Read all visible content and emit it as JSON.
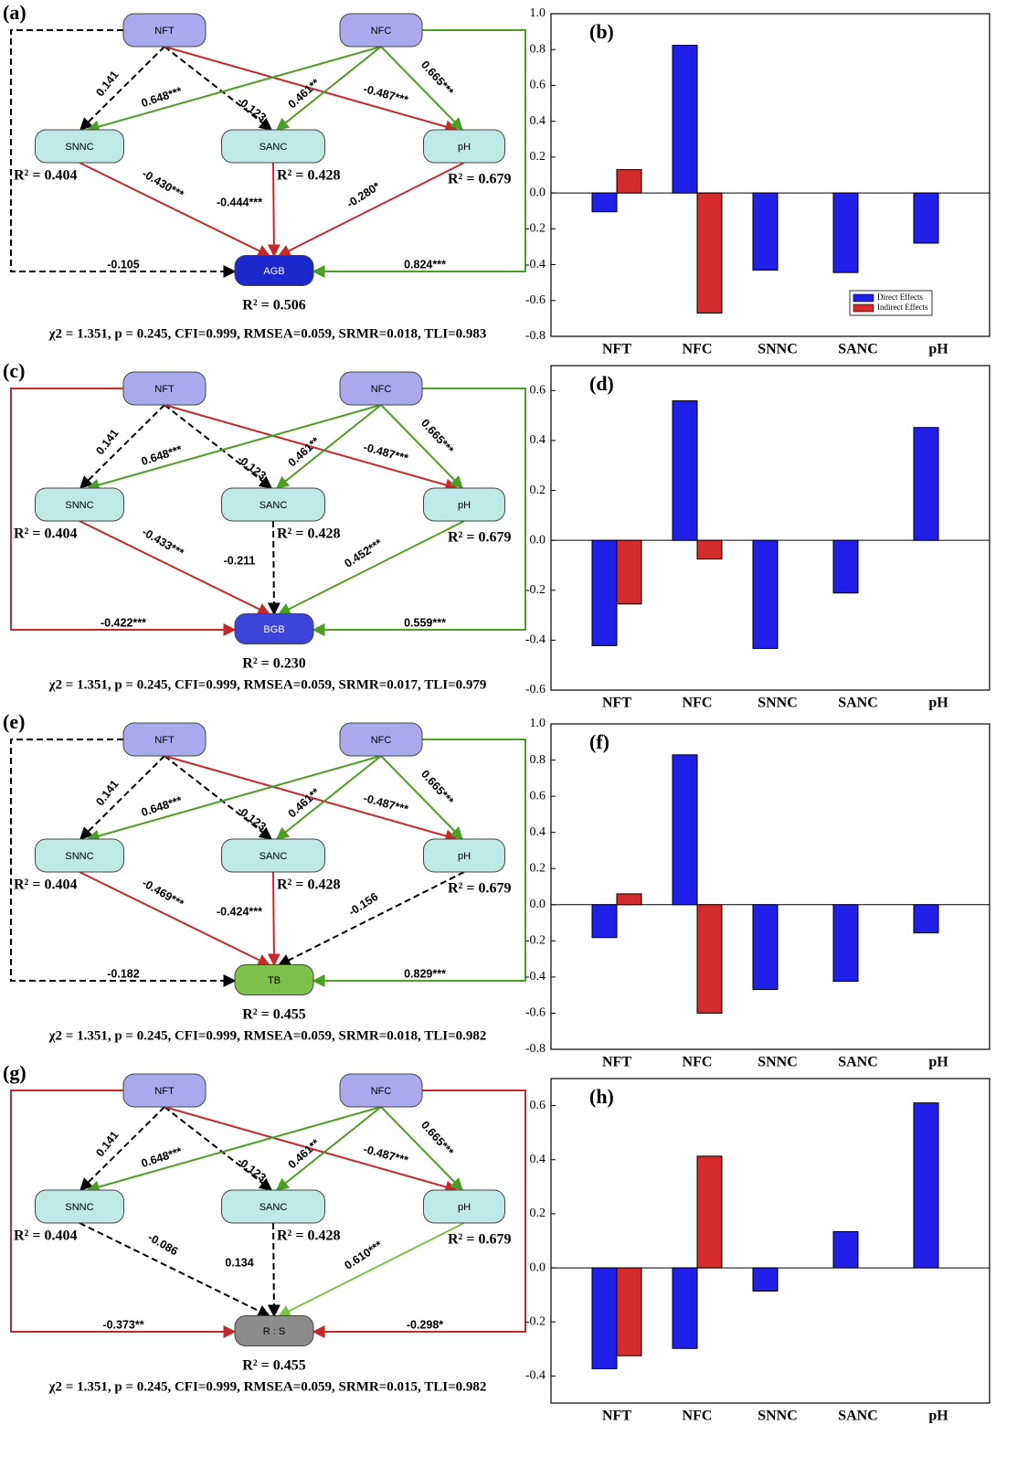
{
  "diagrams": [
    {
      "panel": "(a)",
      "fit": "χ2 = 1.351, p = 0.245, CFI=0.999, RMSEA=0.059, SRMR=0.018, TLI=0.983",
      "nodes": [
        {
          "label": "NFT",
          "fill": "#a9aaee"
        },
        {
          "label": "NFC",
          "fill": "#a9aaee"
        },
        {
          "label": "SNNC",
          "fill": "#bfe9e7",
          "r2": "R² = 0.404"
        },
        {
          "label": "SANC",
          "fill": "#bfe9e7",
          "r2": "R² = 0.428"
        },
        {
          "label": "pH",
          "fill": "#bfe9e7",
          "r2": "R² = 0.679"
        },
        {
          "label": "AGB",
          "fill": "#1a28cc",
          "r2": "R² = 0.506"
        }
      ],
      "edges": [
        {
          "from": 0,
          "to": 2,
          "label": "0.141",
          "color": "#000000",
          "dashed": true
        },
        {
          "from": 0,
          "to": 3,
          "label": "-0.123",
          "color": "#000000",
          "dashed": true
        },
        {
          "from": 0,
          "to": 4,
          "label": "-0.487***",
          "color": "#c42a2a",
          "dashed": false
        },
        {
          "from": 1,
          "to": 2,
          "label": "0.648***",
          "color": "#4c9e24",
          "dashed": false
        },
        {
          "from": 1,
          "to": 3,
          "label": "0.461**",
          "color": "#4c9e24",
          "dashed": false
        },
        {
          "from": 1,
          "to": 4,
          "label": "0.665***",
          "color": "#4c9e24",
          "dashed": false
        },
        {
          "from": 2,
          "to": 5,
          "label": "-0.430***",
          "color": "#c42a2a",
          "dashed": false
        },
        {
          "from": 3,
          "to": 5,
          "label": "-0.444***",
          "color": "#c42a2a",
          "dashed": false
        },
        {
          "from": 4,
          "to": 5,
          "label": "-0.280*",
          "color": "#c42a2a",
          "dashed": false
        },
        {
          "from": 0,
          "to": 5,
          "label": "-0.105",
          "color": "#000000",
          "dashed": true
        },
        {
          "from": 1,
          "to": 5,
          "label": "0.824***",
          "color": "#4c9e24",
          "dashed": false
        }
      ]
    },
    {
      "panel": "(c)",
      "fit": "χ2 = 1.351, p = 0.245, CFI=0.999, RMSEA=0.059, SRMR=0.017, TLI=0.979",
      "nodes": [
        {
          "label": "NFT",
          "fill": "#a9aaee"
        },
        {
          "label": "NFC",
          "fill": "#a9aaee"
        },
        {
          "label": "SNNC",
          "fill": "#bfe9e7",
          "r2": "R² = 0.404"
        },
        {
          "label": "SANC",
          "fill": "#bfe9e7",
          "r2": "R² = 0.428"
        },
        {
          "label": "pH",
          "fill": "#bfe9e7",
          "r2": "R² = 0.679"
        },
        {
          "label": "BGB",
          "fill": "#3d44dc",
          "r2": "R² = 0.230"
        }
      ],
      "edges": [
        {
          "from": 0,
          "to": 2,
          "label": "0.141",
          "color": "#000000",
          "dashed": true
        },
        {
          "from": 0,
          "to": 3,
          "label": "-0.123",
          "color": "#000000",
          "dashed": true
        },
        {
          "from": 0,
          "to": 4,
          "label": "-0.487***",
          "color": "#c42a2a",
          "dashed": false
        },
        {
          "from": 1,
          "to": 2,
          "label": "0.648***",
          "color": "#4c9e24",
          "dashed": false
        },
        {
          "from": 1,
          "to": 3,
          "label": "0.461**",
          "color": "#4c9e24",
          "dashed": false
        },
        {
          "from": 1,
          "to": 4,
          "label": "0.665***",
          "color": "#4c9e24",
          "dashed": false
        },
        {
          "from": 2,
          "to": 5,
          "label": "-0.433***",
          "color": "#c42a2a",
          "dashed": false
        },
        {
          "from": 3,
          "to": 5,
          "label": "-0.211",
          "color": "#000000",
          "dashed": true
        },
        {
          "from": 4,
          "to": 5,
          "label": "0.452***",
          "color": "#4c9e24",
          "dashed": false
        },
        {
          "from": 0,
          "to": 5,
          "label": "-0.422***",
          "color": "#c42a2a",
          "dashed": false
        },
        {
          "from": 1,
          "to": 5,
          "label": "0.559***",
          "color": "#4c9e24",
          "dashed": false
        }
      ]
    },
    {
      "panel": "(e)",
      "fit": "χ2 = 1.351, p = 0.245, CFI=0.999, RMSEA=0.059, SRMR=0.018, TLI=0.982",
      "nodes": [
        {
          "label": "NFT",
          "fill": "#a9aaee"
        },
        {
          "label": "NFC",
          "fill": "#a9aaee"
        },
        {
          "label": "SNNC",
          "fill": "#bfe9e7",
          "r2": "R² = 0.404"
        },
        {
          "label": "SANC",
          "fill": "#bfe9e7",
          "r2": "R² = 0.428"
        },
        {
          "label": "pH",
          "fill": "#bfe9e7",
          "r2": "R² = 0.679"
        },
        {
          "label": "TB",
          "fill": "#7cc24a",
          "r2": "R² = 0.455"
        }
      ],
      "edges": [
        {
          "from": 0,
          "to": 2,
          "label": "0.141",
          "color": "#000000",
          "dashed": true
        },
        {
          "from": 0,
          "to": 3,
          "label": "-0.123",
          "color": "#000000",
          "dashed": true
        },
        {
          "from": 0,
          "to": 4,
          "label": "-0.487***",
          "color": "#c42a2a",
          "dashed": false
        },
        {
          "from": 1,
          "to": 2,
          "label": "0.648***",
          "color": "#4c9e24",
          "dashed": false
        },
        {
          "from": 1,
          "to": 3,
          "label": "0.461**",
          "color": "#4c9e24",
          "dashed": false
        },
        {
          "from": 1,
          "to": 4,
          "label": "0.665***",
          "color": "#4c9e24",
          "dashed": false
        },
        {
          "from": 2,
          "to": 5,
          "label": "-0.469***",
          "color": "#c42a2a",
          "dashed": false
        },
        {
          "from": 3,
          "to": 5,
          "label": "-0.424***",
          "color": "#c42a2a",
          "dashed": false
        },
        {
          "from": 4,
          "to": 5,
          "label": "-0.156",
          "color": "#000000",
          "dashed": true
        },
        {
          "from": 0,
          "to": 5,
          "label": "-0.182",
          "color": "#000000",
          "dashed": true
        },
        {
          "from": 1,
          "to": 5,
          "label": "0.829***",
          "color": "#4c9e24",
          "dashed": false
        }
      ]
    },
    {
      "panel": "(g)",
      "fit": "χ2 = 1.351, p = 0.245, CFI=0.999, RMSEA=0.059, SRMR=0.015, TLI=0.982",
      "nodes": [
        {
          "label": "NFT",
          "fill": "#a9aaee"
        },
        {
          "label": "NFC",
          "fill": "#a9aaee"
        },
        {
          "label": "SNNC",
          "fill": "#bfe9e7",
          "r2": "R² = 0.404"
        },
        {
          "label": "SANC",
          "fill": "#bfe9e7",
          "r2": "R² = 0.428"
        },
        {
          "label": "pH",
          "fill": "#bfe9e7",
          "r2": "R² = 0.679"
        },
        {
          "label": "R : S",
          "fill": "#8c8c8c",
          "r2": "R² = 0.455"
        }
      ],
      "edges": [
        {
          "from": 0,
          "to": 2,
          "label": "0.141",
          "color": "#000000",
          "dashed": true
        },
        {
          "from": 0,
          "to": 3,
          "label": "-0.123",
          "color": "#000000",
          "dashed": true
        },
        {
          "from": 0,
          "to": 4,
          "label": "-0.487***",
          "color": "#c42a2a",
          "dashed": false
        },
        {
          "from": 1,
          "to": 2,
          "label": "0.648***",
          "color": "#4c9e24",
          "dashed": false
        },
        {
          "from": 1,
          "to": 3,
          "label": "0.461**",
          "color": "#4c9e24",
          "dashed": false
        },
        {
          "from": 1,
          "to": 4,
          "label": "0.665***",
          "color": "#4c9e24",
          "dashed": false
        },
        {
          "from": 2,
          "to": 5,
          "label": "-0.086",
          "color": "#000000",
          "dashed": true
        },
        {
          "from": 3,
          "to": 5,
          "label": "0.134",
          "color": "#000000",
          "dashed": true
        },
        {
          "from": 4,
          "to": 5,
          "label": "0.610***",
          "color": "#7cc24a",
          "dashed": false
        },
        {
          "from": 0,
          "to": 5,
          "label": "-0.373**",
          "color": "#c42a2a",
          "dashed": false
        },
        {
          "from": 1,
          "to": 5,
          "label": "-0.298*",
          "color": "#c42a2a",
          "dashed": false
        }
      ]
    }
  ],
  "chart_data": [
    {
      "type": "bar",
      "panel": "(b)",
      "categories": [
        "NFT",
        "NFC",
        "SNNC",
        "SANC",
        "pH"
      ],
      "legend": true,
      "series": [
        {
          "name": "Direct Effects",
          "color": "#2020e8",
          "values": [
            -0.105,
            0.824,
            -0.43,
            -0.444,
            -0.28
          ]
        },
        {
          "name": "Indirect Effects",
          "color": "#d42c2c",
          "values": [
            0.13,
            -0.67,
            null,
            null,
            null
          ]
        }
      ],
      "ylim": [
        -0.8,
        1.0
      ],
      "yticks": [
        {
          "value": -0.8,
          "label": "-0.8"
        },
        {
          "value": -0.6,
          "label": "-0.6"
        },
        {
          "value": -0.4,
          "label": "-0.4"
        },
        {
          "value": -0.2,
          "label": "-0.2"
        },
        {
          "value": 0,
          "label": "0.0"
        },
        {
          "value": 0.2,
          "label": "0.2"
        },
        {
          "value": 0.4,
          "label": "0.4"
        },
        {
          "value": 0.6,
          "label": "0.6"
        },
        {
          "value": 0.8,
          "label": "0.8"
        },
        {
          "value": 1,
          "label": "1.0"
        }
      ]
    },
    {
      "type": "bar",
      "panel": "(d)",
      "categories": [
        "NFT",
        "NFC",
        "SNNC",
        "SANC",
        "pH"
      ],
      "legend": false,
      "series": [
        {
          "color": "#2020e8",
          "values": [
            -0.422,
            0.559,
            -0.433,
            -0.211,
            0.452
          ]
        },
        {
          "color": "#d42c2c",
          "values": [
            -0.255,
            -0.075,
            null,
            null,
            null
          ]
        }
      ],
      "ylim": [
        -0.6,
        0.7
      ],
      "yticks": [
        {
          "value": -0.6,
          "label": "-0.6"
        },
        {
          "value": -0.4,
          "label": "-0.4"
        },
        {
          "value": -0.2,
          "label": "-0.2"
        },
        {
          "value": 0,
          "label": "0.0"
        },
        {
          "value": 0.2,
          "label": "0.2"
        },
        {
          "value": 0.4,
          "label": "0.4"
        },
        {
          "value": 0.6,
          "label": "0.6"
        }
      ]
    },
    {
      "type": "bar",
      "panel": "(f)",
      "categories": [
        "NFT",
        "NFC",
        "SNNC",
        "SANC",
        "pH"
      ],
      "legend": false,
      "series": [
        {
          "color": "#2020e8",
          "values": [
            -0.182,
            0.829,
            -0.469,
            -0.424,
            -0.156
          ]
        },
        {
          "color": "#d42c2c",
          "values": [
            0.06,
            -0.6,
            null,
            null,
            null
          ]
        }
      ],
      "ylim": [
        -0.8,
        1.0
      ],
      "yticks": [
        {
          "value": -0.8,
          "label": "-0.8"
        },
        {
          "value": -0.6,
          "label": "-0.6"
        },
        {
          "value": -0.4,
          "label": "-0.4"
        },
        {
          "value": -0.2,
          "label": "-0.2"
        },
        {
          "value": 0,
          "label": "0.0"
        },
        {
          "value": 0.2,
          "label": "0.2"
        },
        {
          "value": 0.4,
          "label": "0.4"
        },
        {
          "value": 0.6,
          "label": "0.6"
        },
        {
          "value": 0.8,
          "label": "0.8"
        },
        {
          "value": 1,
          "label": "1.0"
        }
      ]
    },
    {
      "type": "bar",
      "panel": "(h)",
      "categories": [
        "NFT",
        "NFC",
        "SNNC",
        "SANC",
        "pH"
      ],
      "legend": false,
      "series": [
        {
          "color": "#2020e8",
          "values": [
            -0.373,
            -0.298,
            -0.086,
            0.134,
            0.61
          ]
        },
        {
          "color": "#d42c2c",
          "values": [
            -0.325,
            0.413,
            null,
            null,
            null
          ]
        }
      ],
      "ylim": [
        -0.5,
        0.7
      ],
      "yticks": [
        {
          "value": -0.4,
          "label": "-0.4"
        },
        {
          "value": -0.2,
          "label": "-0.2"
        },
        {
          "value": 0,
          "label": "0.0"
        },
        {
          "value": 0.2,
          "label": "0.2"
        },
        {
          "value": 0.4,
          "label": "0.4"
        },
        {
          "value": 0.6,
          "label": "0.6"
        }
      ]
    }
  ]
}
